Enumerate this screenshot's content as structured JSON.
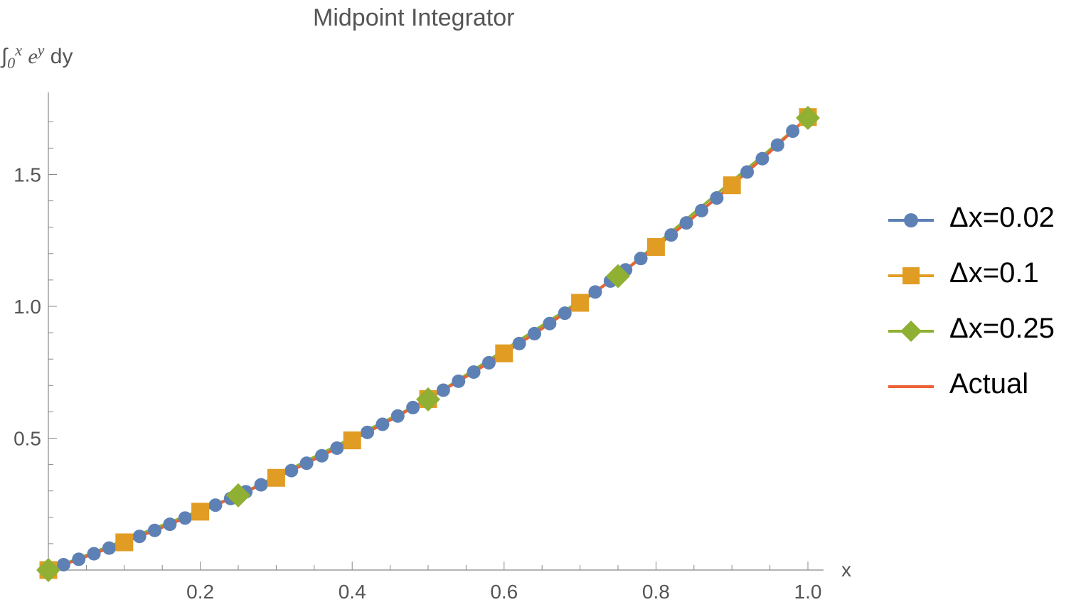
{
  "chart_data": {
    "type": "line",
    "title": "Midpoint Integrator",
    "xlabel": "x",
    "ylabel": {
      "integral": "∫",
      "lower": "0",
      "upper": "x",
      "base": "e",
      "exponent": "y",
      "differential": "dy"
    },
    "xlim": [
      0,
      1.0
    ],
    "ylim": [
      0,
      1.8
    ],
    "x_ticks": [
      "0.2",
      "0.4",
      "0.6",
      "0.8",
      "1.0"
    ],
    "y_ticks": [
      "0.5",
      "1.0",
      "1.5"
    ],
    "grid": false,
    "legend_position": "right",
    "series": [
      {
        "name": "Δx=0.02",
        "color": "#5E81B5",
        "marker": "circle",
        "x": [
          0,
          0.02,
          0.04,
          0.06,
          0.08,
          0.1,
          0.12,
          0.14,
          0.16,
          0.18,
          0.2,
          0.22,
          0.24,
          0.26,
          0.28,
          0.3,
          0.32,
          0.34,
          0.36,
          0.38,
          0.4,
          0.42,
          0.44,
          0.46,
          0.48,
          0.5,
          0.52,
          0.54,
          0.56,
          0.58,
          0.6,
          0.62,
          0.64,
          0.66,
          0.68,
          0.7,
          0.72,
          0.74,
          0.76,
          0.78,
          0.8,
          0.82,
          0.84,
          0.86,
          0.88,
          0.9,
          0.92,
          0.94,
          0.96,
          0.98,
          1.0
        ],
        "y": [
          0,
          0.0202,
          0.0408,
          0.0618,
          0.0833,
          0.1052,
          0.1275,
          0.1503,
          0.1735,
          0.1972,
          0.2214,
          0.2461,
          0.2712,
          0.2969,
          0.3231,
          0.3498,
          0.3771,
          0.4049,
          0.4333,
          0.4623,
          0.4918,
          0.522,
          0.5527,
          0.5841,
          0.6161,
          0.6487,
          0.682,
          0.716,
          0.7507,
          0.786,
          0.8221,
          0.8589,
          0.8965,
          0.9348,
          0.9739,
          1.0137,
          1.0544,
          1.0959,
          1.1383,
          1.1815,
          1.2255,
          1.2705,
          1.3164,
          1.3632,
          1.4109,
          1.4596,
          1.5093,
          1.5599,
          1.6116,
          1.6643,
          1.7181
        ]
      },
      {
        "name": "Δx=0.1",
        "color": "#E19C24",
        "marker": "square",
        "x": [
          0,
          0.1,
          0.2,
          0.3,
          0.4,
          0.5,
          0.6,
          0.7,
          0.8,
          0.9,
          1.0
        ],
        "y": [
          0,
          0.1051,
          0.2213,
          0.3497,
          0.4916,
          0.6484,
          0.8218,
          1.0134,
          1.2251,
          1.4591,
          1.7178
        ]
      },
      {
        "name": "Δx=0.25",
        "color": "#8FB032",
        "marker": "diamond",
        "x": [
          0,
          0.25,
          0.5,
          0.75,
          1.0
        ],
        "y": [
          0,
          0.2834,
          0.6473,
          1.1146,
          1.7146
        ]
      },
      {
        "name": "Actual",
        "color": "#EB6235",
        "marker": "none",
        "x": [
          0,
          0.05,
          0.1,
          0.15,
          0.2,
          0.25,
          0.3,
          0.35,
          0.4,
          0.45,
          0.5,
          0.55,
          0.6,
          0.65,
          0.7,
          0.75,
          0.8,
          0.85,
          0.9,
          0.95,
          1.0
        ],
        "y": [
          0,
          0.0513,
          0.1052,
          0.1618,
          0.2214,
          0.284,
          0.3499,
          0.4191,
          0.4918,
          0.5683,
          0.6487,
          0.7333,
          0.8221,
          0.9155,
          1.0138,
          1.117,
          1.2255,
          1.3396,
          1.4596,
          1.5857,
          1.7183
        ]
      }
    ]
  }
}
